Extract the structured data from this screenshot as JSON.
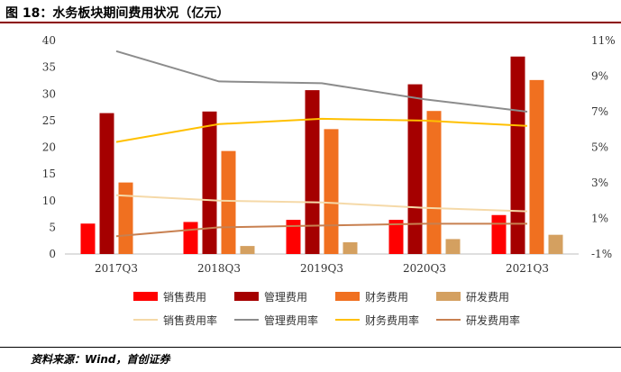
{
  "title": "图 18：水务板块期间费用状况（亿元）",
  "source": "资料来源：Wind，首创证券",
  "chart_data": {
    "type": "bar",
    "title": "图 18：水务板块期间费用状况（亿元）",
    "categories": [
      "2017Q3",
      "2018Q3",
      "2019Q3",
      "2020Q3",
      "2021Q3"
    ],
    "ylim": [
      0,
      40
    ],
    "yticks": [
      "0",
      "5",
      "10",
      "15",
      "20",
      "25",
      "30",
      "35",
      "40"
    ],
    "y2lim": [
      -1,
      11
    ],
    "y2ticks": [
      "-1%",
      "1%",
      "3%",
      "5%",
      "7%",
      "9%",
      "11%"
    ],
    "series": [
      {
        "name": "销售费用",
        "type": "bar",
        "axis": "left",
        "color": "#ff0000",
        "values": [
          5.7,
          6.0,
          6.4,
          6.4,
          7.3
        ]
      },
      {
        "name": "管理费用",
        "type": "bar",
        "axis": "left",
        "color": "#a50000",
        "values": [
          26.4,
          26.7,
          30.7,
          31.8,
          37.0
        ]
      },
      {
        "name": "财务费用",
        "type": "bar",
        "axis": "left",
        "color": "#f07020",
        "values": [
          13.4,
          19.3,
          23.4,
          26.8,
          32.6
        ]
      },
      {
        "name": "研发费用",
        "type": "bar",
        "axis": "left",
        "color": "#d4a060",
        "values": [
          0.0,
          1.5,
          2.2,
          2.8,
          3.6
        ]
      },
      {
        "name": "销售费用率",
        "type": "line",
        "axis": "right",
        "color": "#f5d9a8",
        "values": [
          2.3,
          2.0,
          1.9,
          1.6,
          1.4
        ]
      },
      {
        "name": "管理费用率",
        "type": "line",
        "axis": "right",
        "color": "#8c8c8c",
        "values": [
          10.4,
          8.7,
          8.6,
          7.7,
          7.0
        ]
      },
      {
        "name": "财务费用率",
        "type": "line",
        "axis": "right",
        "color": "#ffc000",
        "values": [
          5.3,
          6.3,
          6.6,
          6.5,
          6.2
        ]
      },
      {
        "name": "研发费用率",
        "type": "line",
        "axis": "right",
        "color": "#c88050",
        "values": [
          0.0,
          0.5,
          0.6,
          0.7,
          0.7
        ]
      }
    ]
  }
}
